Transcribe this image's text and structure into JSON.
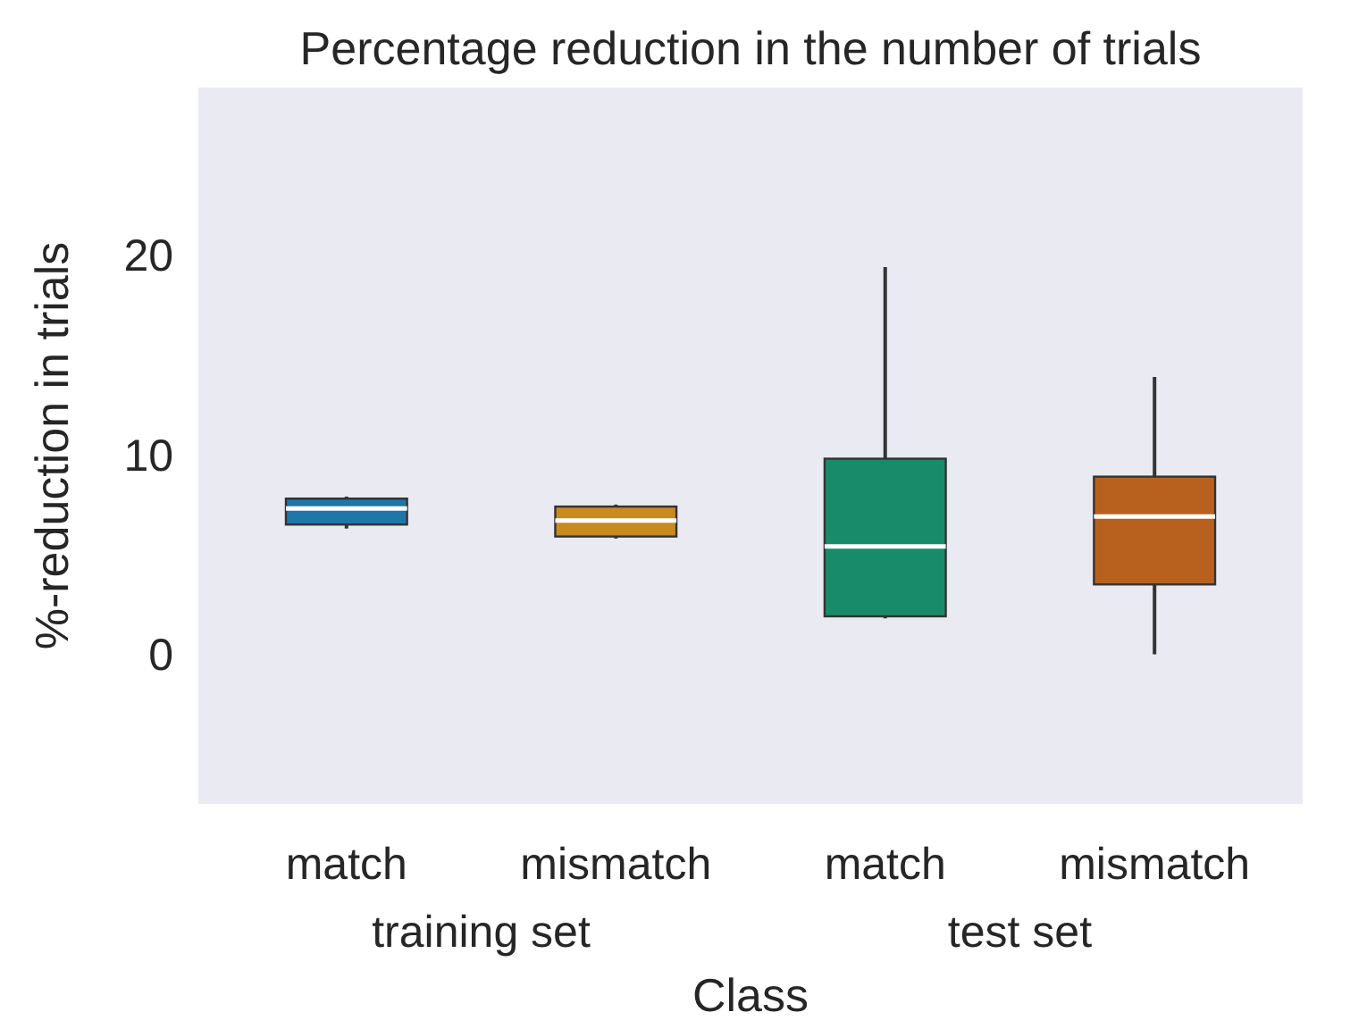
{
  "chart_data": {
    "type": "box",
    "title": "Percentage reduction in the number of trials",
    "xlabel": "Class",
    "ylabel": "%-reduction in trials",
    "categories": [
      "match",
      "mismatch",
      "match",
      "mismatch"
    ],
    "annotations": [
      "training set",
      "test set"
    ],
    "colors": [
      "#1f76a8",
      "#c88b20",
      "#188b6a",
      "#b8611e"
    ],
    "boxes": [
      {
        "low": 6.3,
        "q1": 6.5,
        "median": 7.3,
        "q3": 7.8,
        "high": 7.9
      },
      {
        "low": 5.8,
        "q1": 5.9,
        "median": 6.7,
        "q3": 7.4,
        "high": 7.5
      },
      {
        "low": 1.8,
        "q1": 1.9,
        "median": 5.4,
        "q3": 9.8,
        "high": 19.4
      },
      {
        "low": 0,
        "q1": 3.5,
        "median": 6.9,
        "q3": 8.9,
        "high": 13.9
      }
    ],
    "ylim": [
      -7.5,
      28.4
    ],
    "yticks": [
      0,
      10,
      20
    ],
    "grid": false
  }
}
